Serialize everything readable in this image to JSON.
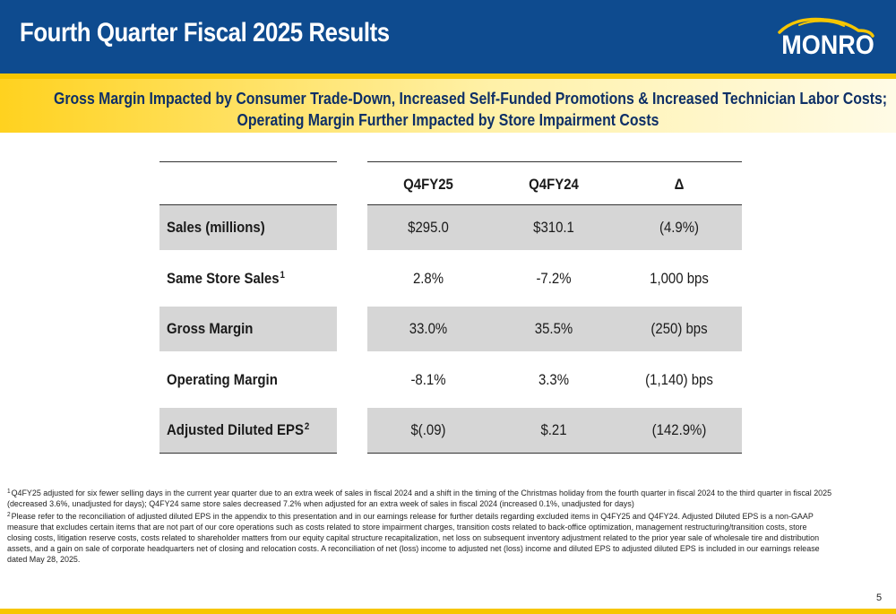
{
  "header": {
    "title": "Fourth Quarter Fiscal 2025 Results",
    "logo_text": "MONRO",
    "brand_blue": "#0e4b8f",
    "brand_yellow": "#f7c600"
  },
  "banner": {
    "line1": "Gross Margin Impacted by Consumer Trade-Down, Increased Self-Funded Promotions & Increased Technician Labor Costs;",
    "line2": "Operating Margin Further Impacted by Store Impairment Costs"
  },
  "table": {
    "columns": [
      "Q4FY25",
      "Q4FY24",
      "Δ"
    ],
    "rows": [
      {
        "label": "Sales (millions)",
        "sup": "",
        "values": [
          "$295.0",
          "$310.1",
          "(4.9%)"
        ],
        "shaded": true
      },
      {
        "label": "Same Store Sales",
        "sup": "1",
        "values": [
          "2.8%",
          "-7.2%",
          "1,000 bps"
        ],
        "shaded": false
      },
      {
        "label": "Gross Margin",
        "sup": "",
        "values": [
          "33.0%",
          "35.5%",
          "(250) bps"
        ],
        "shaded": true
      },
      {
        "label": "Operating Margin",
        "sup": "",
        "values": [
          "-8.1%",
          "3.3%",
          "(1,140) bps"
        ],
        "shaded": false
      },
      {
        "label": "Adjusted Diluted EPS",
        "sup": "2",
        "values": [
          "$(.09)",
          "$.21",
          "(142.9%)"
        ],
        "shaded": true
      }
    ]
  },
  "footnotes": {
    "fn1_sup": "1",
    "fn1": "Q4FY25 adjusted for six fewer selling days in the current year quarter due to an extra week of sales in fiscal 2024 and a shift in the timing of the Christmas holiday from the fourth quarter in fiscal 2024 to the third quarter in fiscal 2025 (decreased 3.6%, unadjusted for days); Q4FY24 same store sales decreased 7.2% when adjusted for an extra week of sales in fiscal 2024 (increased 0.1%, unadjusted for days)",
    "fn2_sup": "2",
    "fn2": "Please refer to the reconciliation of adjusted diluted EPS in the appendix to this presentation and in our earnings release for further details regarding excluded items in Q4FY25 and Q4FY24. Adjusted Diluted EPS is a non-GAAP measure that excludes certain items that are not part of our core operations such as costs related to store impairment charges, transition costs related to back-office optimization, management restructuring/transition costs, store closing costs, litigation reserve costs, costs related to shareholder matters from our equity capital structure recapitalization, net loss on subsequent inventory adjustment related to the prior year sale of wholesale tire and distribution assets, and a gain on sale of corporate headquarters net of closing and relocation costs.  A reconciliation of net (loss) income to adjusted net (loss) income and diluted EPS to adjusted diluted EPS is included in our earnings release dated May 28, 2025."
  },
  "page_number": "5"
}
